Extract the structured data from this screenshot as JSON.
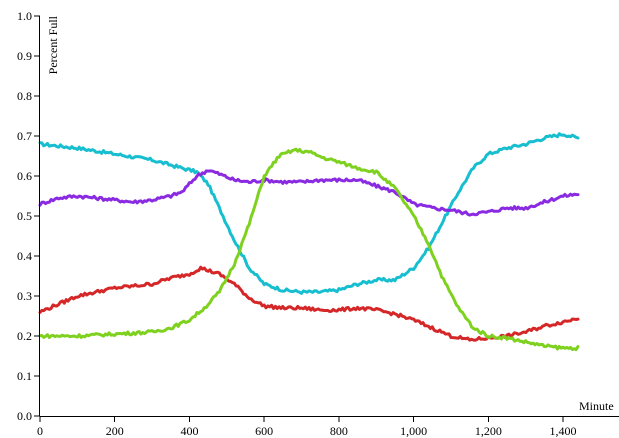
{
  "chart_data": {
    "type": "line",
    "xlabel": "Minute",
    "ylabel": "Percent Full",
    "xlim": [
      0,
      1440
    ],
    "ylim": [
      0,
      1.0
    ],
    "x_ticks": [
      0,
      200,
      400,
      600,
      800,
      1000,
      1200,
      1400
    ],
    "x_tick_labels": [
      "0",
      "200",
      "400",
      "600",
      "800",
      "1,000",
      "1,200",
      "1,400"
    ],
    "y_ticks": [
      0,
      0.1,
      0.2,
      0.3,
      0.4,
      0.5,
      0.6,
      0.7,
      0.8,
      0.9,
      1.0
    ],
    "y_tick_labels": [
      "0.0",
      "0.1",
      "0.2",
      "0.3",
      "0.4",
      "0.5",
      "0.6",
      "0.7",
      "0.8",
      "0.9",
      "1.0"
    ],
    "grid": false,
    "legend": "none",
    "series": [
      {
        "color": "#17becf",
        "x": [
          0,
          100,
          200,
          300,
          380,
          420,
          450,
          480,
          520,
          560,
          600,
          650,
          700,
          750,
          800,
          850,
          900,
          950,
          1000,
          1040,
          1080,
          1120,
          1160,
          1200,
          1250,
          1300,
          1350,
          1400,
          1440
        ],
        "y": [
          0.68,
          0.67,
          0.655,
          0.64,
          0.62,
          0.61,
          0.58,
          0.52,
          0.44,
          0.37,
          0.33,
          0.315,
          0.31,
          0.31,
          0.315,
          0.33,
          0.34,
          0.34,
          0.37,
          0.42,
          0.49,
          0.56,
          0.62,
          0.655,
          0.67,
          0.68,
          0.695,
          0.705,
          0.695
        ]
      },
      {
        "color": "#8a2be2",
        "x": [
          0,
          50,
          100,
          150,
          200,
          250,
          300,
          350,
          380,
          400,
          420,
          450,
          480,
          520,
          560,
          600,
          650,
          700,
          750,
          800,
          850,
          900,
          950,
          1000,
          1050,
          1100,
          1150,
          1200,
          1250,
          1300,
          1350,
          1400,
          1440
        ],
        "y": [
          0.53,
          0.545,
          0.55,
          0.545,
          0.54,
          0.535,
          0.54,
          0.55,
          0.56,
          0.58,
          0.6,
          0.615,
          0.605,
          0.59,
          0.585,
          0.59,
          0.585,
          0.585,
          0.59,
          0.59,
          0.59,
          0.575,
          0.56,
          0.53,
          0.52,
          0.515,
          0.505,
          0.51,
          0.52,
          0.52,
          0.535,
          0.55,
          0.555
        ]
      },
      {
        "color": "#d62728",
        "x": [
          0,
          100,
          200,
          300,
          350,
          400,
          430,
          480,
          520,
          560,
          600,
          650,
          700,
          750,
          800,
          850,
          900,
          950,
          1000,
          1050,
          1100,
          1150,
          1200,
          1250,
          1300,
          1350,
          1400,
          1440
        ],
        "y": [
          0.26,
          0.3,
          0.32,
          0.33,
          0.345,
          0.355,
          0.37,
          0.355,
          0.33,
          0.295,
          0.275,
          0.27,
          0.27,
          0.265,
          0.265,
          0.27,
          0.265,
          0.255,
          0.24,
          0.22,
          0.2,
          0.19,
          0.195,
          0.2,
          0.21,
          0.225,
          0.235,
          0.245
        ]
      },
      {
        "color": "#7fd11f",
        "x": [
          0,
          100,
          200,
          300,
          350,
          400,
          440,
          480,
          520,
          560,
          600,
          640,
          680,
          720,
          760,
          800,
          850,
          900,
          950,
          1000,
          1040,
          1080,
          1120,
          1160,
          1200,
          1250,
          1300,
          1350,
          1400,
          1440
        ],
        "y": [
          0.2,
          0.2,
          0.205,
          0.21,
          0.22,
          0.24,
          0.27,
          0.31,
          0.38,
          0.48,
          0.6,
          0.65,
          0.665,
          0.66,
          0.645,
          0.635,
          0.62,
          0.61,
          0.57,
          0.5,
          0.43,
          0.34,
          0.27,
          0.22,
          0.2,
          0.195,
          0.185,
          0.175,
          0.17,
          0.17
        ]
      }
    ]
  }
}
